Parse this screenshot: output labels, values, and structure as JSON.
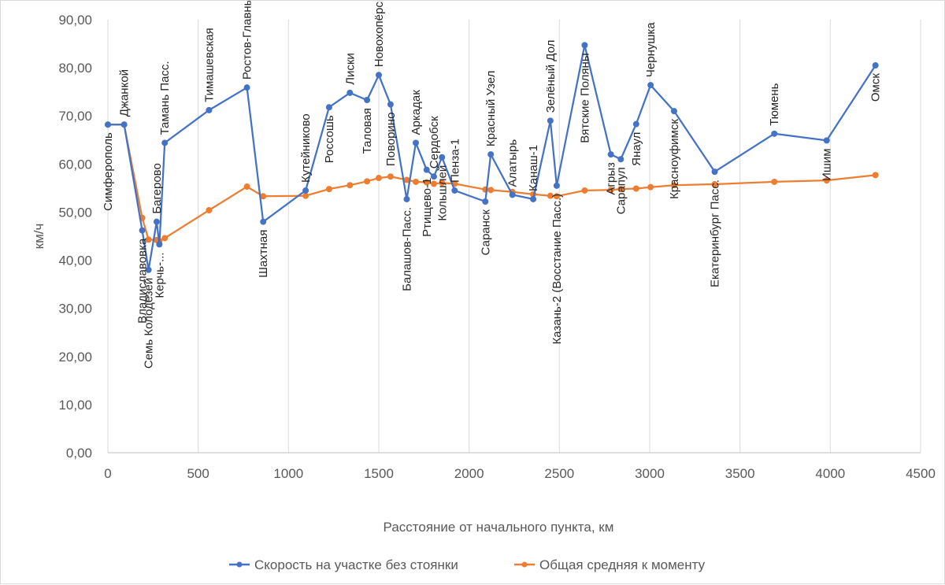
{
  "chart_data": {
    "type": "line",
    "title": "",
    "xlabel": "Расстояние от начального пункта, км",
    "ylabel": "км/ч",
    "xlim": [
      0,
      4500
    ],
    "ylim": [
      0,
      90
    ],
    "x_ticks": [
      0,
      500,
      1000,
      1500,
      2000,
      2500,
      3000,
      3500,
      4000,
      4500
    ],
    "y_ticks": [
      0,
      10,
      20,
      30,
      40,
      50,
      60,
      70,
      80,
      90
    ],
    "y_tick_labels": [
      "0,00",
      "10,00",
      "20,00",
      "30,00",
      "40,00",
      "50,00",
      "60,00",
      "70,00",
      "80,00",
      "90,00"
    ],
    "grid": "vertical",
    "legend_position": "bottom",
    "colors": {
      "speed": "#4472c4",
      "average": "#ed7d31"
    },
    "series": [
      {
        "name": "Скорость на участке без стоянки",
        "x": [
          0,
          90,
          190,
          225,
          270,
          285,
          315,
          560,
          770,
          860,
          1095,
          1225,
          1340,
          1435,
          1500,
          1565,
          1655,
          1705,
          1765,
          1805,
          1850,
          1920,
          2090,
          2120,
          2240,
          2355,
          2450,
          2485,
          2640,
          2785,
          2840,
          2925,
          3005,
          3135,
          3360,
          3690,
          3980,
          4250
        ],
        "values": [
          68.2,
          68.2,
          46.2,
          38.0,
          48.0,
          43.3,
          64.4,
          71.2,
          75.9,
          48.0,
          54.5,
          71.8,
          74.8,
          73.3,
          78.5,
          72.4,
          52.7,
          64.4,
          58.8,
          57.4,
          61.4,
          54.5,
          52.2,
          62.0,
          53.6,
          52.7,
          69.0,
          55.5,
          84.7,
          62.0,
          61.0,
          68.3,
          76.4,
          71.0,
          58.4,
          66.3,
          64.9,
          80.5
        ]
      },
      {
        "name": "Общая средняя к моменту",
        "x": [
          0,
          90,
          190,
          225,
          270,
          285,
          315,
          560,
          770,
          860,
          1095,
          1225,
          1340,
          1435,
          1500,
          1565,
          1655,
          1705,
          1765,
          1805,
          1850,
          1920,
          2090,
          2120,
          2240,
          2355,
          2450,
          2485,
          2640,
          2785,
          2840,
          2925,
          3005,
          3135,
          3360,
          3690,
          3980,
          4250
        ],
        "values": [
          68.2,
          68.2,
          48.8,
          44.3,
          44.2,
          44.0,
          44.6,
          50.4,
          55.3,
          53.3,
          53.4,
          54.8,
          55.6,
          56.4,
          57.1,
          57.4,
          56.7,
          56.3,
          56.2,
          55.9,
          56.1,
          55.9,
          54.7,
          54.6,
          54.2,
          53.7,
          53.4,
          53.3,
          54.5,
          54.6,
          54.8,
          54.9,
          55.2,
          55.6,
          55.8,
          56.3,
          56.6,
          57.7
        ]
      }
    ],
    "station_labels": [
      {
        "text": "Симферополь",
        "x": 0,
        "value": 68.2,
        "pos": "below"
      },
      {
        "text": "Джанкой",
        "x": 90,
        "value": 68.2,
        "pos": "above"
      },
      {
        "text": "Владиславовка",
        "x": 190,
        "value": 46.2,
        "pos": "below"
      },
      {
        "text": "Семь Колодезей",
        "x": 225,
        "value": 38.0,
        "pos": "below"
      },
      {
        "text": "Багерово",
        "x": 270,
        "value": 48.0,
        "pos": "above"
      },
      {
        "text": "Керчь-...",
        "x": 285,
        "value": 43.3,
        "pos": "below"
      },
      {
        "text": "Тамань Пасс.",
        "x": 315,
        "value": 64.4,
        "pos": "above"
      },
      {
        "text": "Тимашевская",
        "x": 560,
        "value": 71.2,
        "pos": "above"
      },
      {
        "text": "Ростов-Главный",
        "x": 770,
        "value": 75.9,
        "pos": "above"
      },
      {
        "text": "Шахтная",
        "x": 860,
        "value": 48.0,
        "pos": "below"
      },
      {
        "text": "Кутейниково",
        "x": 1095,
        "value": 54.5,
        "pos": "above"
      },
      {
        "text": "Россошь",
        "x": 1225,
        "value": 71.8,
        "pos": "below"
      },
      {
        "text": "Лиски",
        "x": 1340,
        "value": 74.8,
        "pos": "above"
      },
      {
        "text": "Таловая",
        "x": 1435,
        "value": 73.3,
        "pos": "below"
      },
      {
        "text": "Новохопёрск",
        "x": 1500,
        "value": 78.5,
        "pos": "above"
      },
      {
        "text": "Поворино",
        "x": 1565,
        "value": 72.4,
        "pos": "below"
      },
      {
        "text": "Балашов-Пасс.",
        "x": 1655,
        "value": 52.7,
        "pos": "below"
      },
      {
        "text": "Аркадак",
        "x": 1705,
        "value": 64.4,
        "pos": "above"
      },
      {
        "text": "Ртищево-1",
        "x": 1765,
        "value": 58.8,
        "pos": "below"
      },
      {
        "text": "Сердобск",
        "x": 1805,
        "value": 57.4,
        "pos": "above"
      },
      {
        "text": "Кольшлей",
        "x": 1850,
        "value": 61.4,
        "pos": "below"
      },
      {
        "text": "Пенза-1",
        "x": 1920,
        "value": 54.5,
        "pos": "above"
      },
      {
        "text": "Саранск",
        "x": 2090,
        "value": 52.2,
        "pos": "below"
      },
      {
        "text": "Красный Узел",
        "x": 2120,
        "value": 62.0,
        "pos": "above"
      },
      {
        "text": "Алатырь",
        "x": 2240,
        "value": 53.6,
        "pos": "above"
      },
      {
        "text": "Канаш-1",
        "x": 2355,
        "value": 52.7,
        "pos": "above"
      },
      {
        "text": "Зелёный Дол",
        "x": 2450,
        "value": 69.0,
        "pos": "above"
      },
      {
        "text": "Казань-2 (Восстание Пасс.)",
        "x": 2485,
        "value": 55.5,
        "pos": "below"
      },
      {
        "text": "Вятские Поляны",
        "x": 2640,
        "value": 84.7,
        "pos": "below"
      },
      {
        "text": "Агрыз",
        "x": 2785,
        "value": 62.0,
        "pos": "below"
      },
      {
        "text": "Сарапул",
        "x": 2840,
        "value": 61.0,
        "pos": "below"
      },
      {
        "text": "Янаул",
        "x": 2925,
        "value": 68.3,
        "pos": "below"
      },
      {
        "text": "Чернушка",
        "x": 3005,
        "value": 76.4,
        "pos": "above"
      },
      {
        "text": "Красноуфимск",
        "x": 3135,
        "value": 71.0,
        "pos": "below"
      },
      {
        "text": "Екатеринбург Пасс.",
        "x": 3360,
        "value": 58.4,
        "pos": "below"
      },
      {
        "text": "Тюмень",
        "x": 3690,
        "value": 66.3,
        "pos": "above"
      },
      {
        "text": "Ишим",
        "x": 3980,
        "value": 64.9,
        "pos": "below"
      },
      {
        "text": "Омск",
        "x": 4250,
        "value": 80.5,
        "pos": "below"
      }
    ]
  }
}
